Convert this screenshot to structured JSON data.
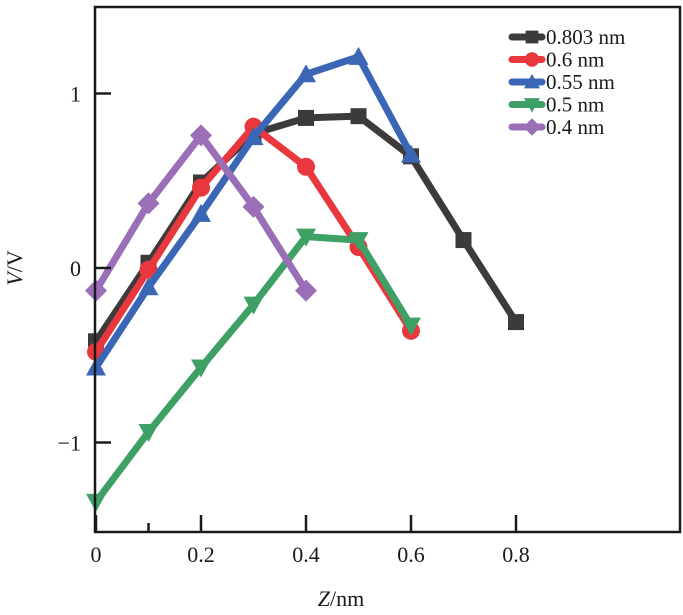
{
  "chart_data": {
    "type": "line",
    "title": "",
    "xlabel_italic": "Z",
    "xlabel_rest": "/nm",
    "ylabel_italic": "V",
    "ylabel_rest": "/V",
    "xlim": [
      0,
      0.85
    ],
    "ylim": [
      -1.51,
      1.5
    ],
    "xticks": [
      0,
      0.2,
      0.4,
      0.6,
      0.8
    ],
    "xtick_labels": [
      "0",
      "0.2",
      "0.4",
      "0.6",
      "0.8"
    ],
    "xminor_ticks": [
      0.1
    ],
    "yticks": [
      1,
      0,
      -1
    ],
    "ytick_labels": [
      "1",
      "0",
      "−1"
    ],
    "grid": false,
    "legend_position": "top-right",
    "series": [
      {
        "name": "0.803 nm",
        "color": "#3d3a3a",
        "marker": "square",
        "x": [
          0,
          0.1,
          0.2,
          0.3,
          0.4,
          0.5,
          0.6,
          0.7,
          0.8
        ],
        "y": [
          -0.42,
          0.03,
          0.49,
          0.77,
          0.86,
          0.87,
          0.64,
          0.16,
          -0.31
        ]
      },
      {
        "name": "0.6 nm",
        "color": "#e8383d",
        "marker": "circle",
        "x": [
          0,
          0.1,
          0.2,
          0.3,
          0.4,
          0.5,
          0.6
        ],
        "y": [
          -0.48,
          -0.01,
          0.46,
          0.81,
          0.58,
          0.12,
          -0.36
        ]
      },
      {
        "name": "0.55 nm",
        "color": "#3a66b5",
        "marker": "triangle-up",
        "x": [
          0,
          0.1,
          0.2,
          0.3,
          0.4,
          0.5,
          0.6
        ],
        "y": [
          -0.57,
          -0.11,
          0.31,
          0.75,
          1.11,
          1.21,
          0.65
        ]
      },
      {
        "name": "0.5 nm",
        "color": "#3fa066",
        "marker": "triangle-down",
        "x": [
          0,
          0.1,
          0.2,
          0.3,
          0.4,
          0.5,
          0.6
        ],
        "y": [
          -1.34,
          -0.94,
          -0.57,
          -0.21,
          0.18,
          0.16,
          -0.33
        ]
      },
      {
        "name": "0.4 nm",
        "color": "#9a6fb8",
        "marker": "diamond",
        "x": [
          0,
          0.1,
          0.2,
          0.3,
          0.4
        ],
        "y": [
          -0.13,
          0.37,
          0.76,
          0.35,
          -0.13
        ]
      }
    ]
  }
}
